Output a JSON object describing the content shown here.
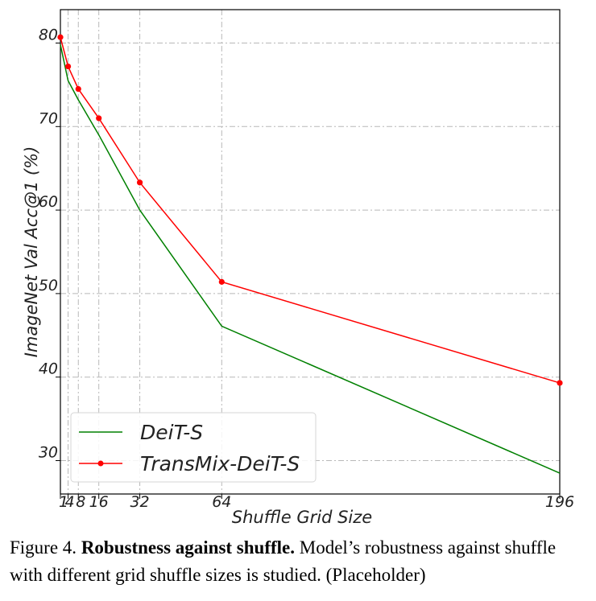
{
  "chart_data": {
    "type": "line",
    "xlabel": "Shuffle Grid Size",
    "ylabel": "ImageNet Val Acc@1 (%)",
    "xlim": [
      1,
      196
    ],
    "ylim": [
      26,
      84
    ],
    "xticks": [
      1,
      4,
      8,
      16,
      32,
      64,
      196
    ],
    "xtick_labels": [
      "1",
      "4",
      "8",
      "16",
      "32",
      "64",
      "196"
    ],
    "yticks": [
      30,
      40,
      50,
      60,
      70,
      80
    ],
    "ytick_labels": [
      "30",
      "40",
      "50",
      "60",
      "70",
      "80"
    ],
    "grid": true,
    "legend_position": "bottom-left",
    "x": [
      1,
      4,
      8,
      16,
      32,
      64,
      196
    ],
    "series": [
      {
        "name": "DeiT-S",
        "color": "#008000",
        "marker": false,
        "values": [
          79.8,
          75.5,
          73.2,
          69.0,
          60.0,
          46.1,
          28.5
        ]
      },
      {
        "name": "TransMix-DeiT-S",
        "color": "#ff0000",
        "marker": true,
        "values": [
          80.7,
          77.2,
          74.5,
          71.0,
          63.3,
          51.4,
          39.3
        ]
      }
    ]
  },
  "caption": {
    "label": "Figure 4.",
    "title": "Robustness against shuffle.",
    "text": "Model’s robustness against shuffle with different grid shuffle sizes is studied. (Placeholder)"
  }
}
